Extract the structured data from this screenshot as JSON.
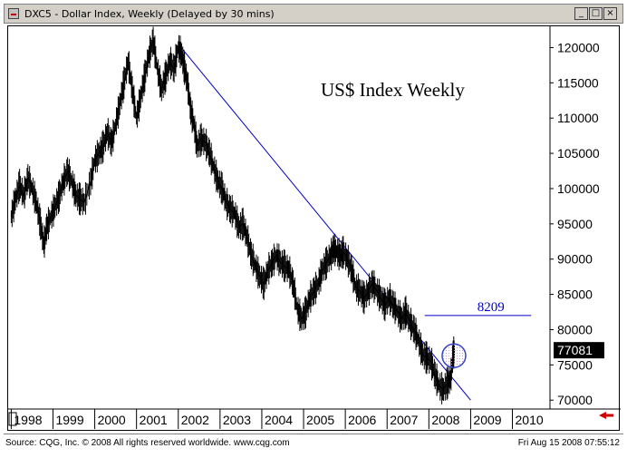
{
  "window": {
    "title": "DXC5 - Dollar Index, Weekly (Delayed by 30 mins)",
    "minimize_glyph": "_",
    "maximize_glyph": "□",
    "close_glyph": "×"
  },
  "chart_data": {
    "type": "line",
    "title": "US$ Index Weekly",
    "x_tick_labels": [
      "1998",
      "1999",
      "2000",
      "2001",
      "2002",
      "2003",
      "2004",
      "2005",
      "2006",
      "2007",
      "2008",
      "2009",
      "2010"
    ],
    "y_tick_labels": [
      "120000",
      "115000",
      "110000",
      "105000",
      "100000",
      "95000",
      "90000",
      "85000",
      "80000",
      "75000",
      "70000"
    ],
    "y_ticks": [
      120000,
      115000,
      110000,
      105000,
      100000,
      95000,
      90000,
      85000,
      80000,
      75000,
      70000
    ],
    "ylim": [
      69000,
      122500
    ],
    "xlim": [
      1997.97,
      2010.9
    ],
    "series": [
      {
        "points": [
          [
            1998.0,
            96000
          ],
          [
            1998.1,
            98500
          ],
          [
            1998.2,
            100500
          ],
          [
            1998.3,
            99000
          ],
          [
            1998.4,
            101500
          ],
          [
            1998.5,
            100000
          ],
          [
            1998.6,
            98000
          ],
          [
            1998.7,
            95000
          ],
          [
            1998.78,
            92000
          ],
          [
            1998.85,
            94500
          ],
          [
            1998.95,
            96000
          ],
          [
            1999.05,
            97500
          ],
          [
            1999.15,
            99000
          ],
          [
            1999.25,
            101000
          ],
          [
            1999.35,
            102500
          ],
          [
            1999.45,
            101000
          ],
          [
            1999.55,
            99000
          ],
          [
            1999.65,
            98500
          ],
          [
            1999.75,
            98000
          ],
          [
            1999.9,
            101000
          ],
          [
            2000.0,
            104000
          ],
          [
            2000.1,
            105000
          ],
          [
            2000.2,
            106000
          ],
          [
            2000.3,
            108000
          ],
          [
            2000.4,
            106500
          ],
          [
            2000.5,
            109000
          ],
          [
            2000.6,
            112000
          ],
          [
            2000.7,
            115000
          ],
          [
            2000.8,
            118000
          ],
          [
            2000.9,
            114000
          ],
          [
            2001.0,
            110000
          ],
          [
            2001.1,
            113000
          ],
          [
            2001.2,
            116000
          ],
          [
            2001.3,
            119000
          ],
          [
            2001.4,
            121000
          ],
          [
            2001.5,
            117000
          ],
          [
            2001.6,
            114000
          ],
          [
            2001.7,
            116000
          ],
          [
            2001.8,
            118000
          ],
          [
            2001.9,
            117000
          ],
          [
            2002.0,
            120000
          ],
          [
            2002.08,
            119000
          ],
          [
            2002.15,
            117000
          ],
          [
            2002.22,
            115000
          ],
          [
            2002.3,
            111000
          ],
          [
            2002.38,
            109000
          ],
          [
            2002.45,
            106000
          ],
          [
            2002.55,
            107000
          ],
          [
            2002.65,
            106500
          ],
          [
            2002.75,
            105000
          ],
          [
            2002.85,
            103000
          ],
          [
            2002.95,
            101000
          ],
          [
            2003.05,
            100000
          ],
          [
            2003.15,
            98000
          ],
          [
            2003.25,
            97000
          ],
          [
            2003.35,
            96500
          ],
          [
            2003.45,
            94500
          ],
          [
            2003.55,
            95000
          ],
          [
            2003.65,
            93000
          ],
          [
            2003.75,
            90500
          ],
          [
            2003.85,
            89000
          ],
          [
            2003.95,
            87500
          ],
          [
            2004.05,
            86500
          ],
          [
            2004.15,
            88500
          ],
          [
            2004.25,
            89500
          ],
          [
            2004.35,
            90500
          ],
          [
            2004.45,
            89500
          ],
          [
            2004.55,
            89000
          ],
          [
            2004.65,
            88500
          ],
          [
            2004.75,
            86500
          ],
          [
            2004.85,
            83000
          ],
          [
            2004.95,
            81500
          ],
          [
            2005.05,
            82500
          ],
          [
            2005.15,
            84500
          ],
          [
            2005.25,
            85500
          ],
          [
            2005.35,
            86500
          ],
          [
            2005.45,
            88500
          ],
          [
            2005.55,
            89500
          ],
          [
            2005.65,
            90500
          ],
          [
            2005.72,
            91500
          ],
          [
            2005.8,
            91000
          ],
          [
            2005.88,
            90500
          ],
          [
            2005.95,
            91000
          ],
          [
            2006.05,
            90000
          ],
          [
            2006.15,
            88500
          ],
          [
            2006.25,
            86000
          ],
          [
            2006.35,
            85500
          ],
          [
            2006.45,
            84500
          ],
          [
            2006.55,
            85500
          ],
          [
            2006.65,
            86500
          ],
          [
            2006.75,
            85500
          ],
          [
            2006.85,
            84500
          ],
          [
            2006.95,
            83500
          ],
          [
            2007.05,
            84500
          ],
          [
            2007.15,
            83500
          ],
          [
            2007.25,
            82500
          ],
          [
            2007.35,
            81500
          ],
          [
            2007.45,
            82500
          ],
          [
            2007.55,
            81000
          ],
          [
            2007.65,
            80000
          ],
          [
            2007.75,
            78500
          ],
          [
            2007.85,
            76500
          ],
          [
            2007.95,
            76000
          ],
          [
            2008.05,
            75500
          ],
          [
            2008.15,
            73500
          ],
          [
            2008.25,
            72000
          ],
          [
            2008.35,
            71500
          ],
          [
            2008.45,
            72500
          ],
          [
            2008.52,
            73000
          ],
          [
            2008.58,
            76500
          ],
          [
            2008.62,
            77081
          ]
        ]
      }
    ],
    "trendline": {
      "start": [
        2002.0,
        120500
      ],
      "end": [
        2009.0,
        70000
      ]
    },
    "level_line": {
      "value": 82000,
      "label": "8209",
      "x_start": 2007.9,
      "x_end": 2010.45
    },
    "circle_marker": {
      "x": 2008.6,
      "y": 76300
    },
    "last_price_label": "77081",
    "last_price_value": 77081,
    "colors": {
      "price": "#000000",
      "trendline": "#0000cc",
      "level_line": "#0000cc",
      "circle": "#3344cc",
      "circle_fill": "#cc99cc",
      "last_price_bg": "#000000",
      "last_price_text": "#ffffff",
      "scroll_arrow": "#cc0000"
    }
  },
  "footer": {
    "source": "Source: CQG, Inc. © 2008 All rights reserved worldwide. www.cqg.com",
    "timestamp": "Fri Aug 15 2008 07:55:12"
  }
}
